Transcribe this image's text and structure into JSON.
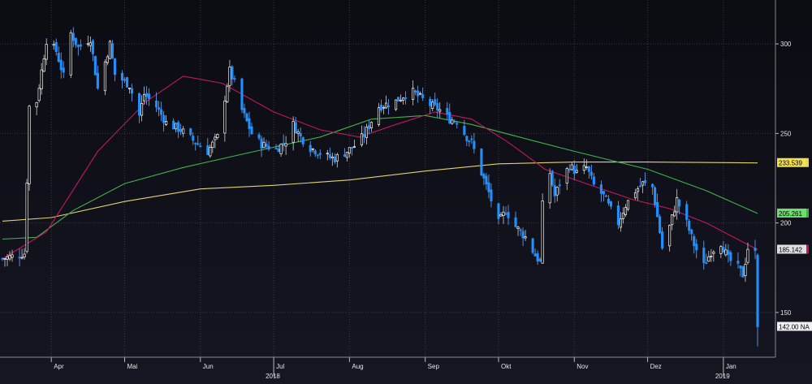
{
  "chart_data": {
    "type": "candlestick",
    "y_axis": {
      "ticks": [
        150,
        200,
        250,
        300
      ],
      "tick_labels": [
        "150",
        "200",
        "250",
        "300"
      ],
      "range": [
        125,
        320
      ],
      "position": "right"
    },
    "x_axis": {
      "range_dates": [
        "2018-03-12",
        "2019-01-15"
      ],
      "months": [
        {
          "label": "Apr",
          "date": "2018-04-01"
        },
        {
          "label": "Mai",
          "date": "2018-05-01"
        },
        {
          "label": "Jun",
          "date": "2018-06-01"
        },
        {
          "label": "Jul",
          "date": "2018-07-01"
        },
        {
          "label": "Aug",
          "date": "2018-08-01"
        },
        {
          "label": "Sep",
          "date": "2018-09-01"
        },
        {
          "label": "Okt",
          "date": "2018-10-01"
        },
        {
          "label": "Nov",
          "date": "2018-11-01"
        },
        {
          "label": "Dez",
          "date": "2018-12-01"
        },
        {
          "label": "Jan",
          "date": "2019-01-01"
        }
      ],
      "years": [
        {
          "label": "2018",
          "date": "2018-07-01"
        },
        {
          "label": "2019",
          "date": "2019-01-01"
        }
      ]
    },
    "grid": true,
    "price_key_points": [
      [
        "2018-03-12",
        180
      ],
      [
        "2018-03-21",
        183
      ],
      [
        "2018-03-23",
        265
      ],
      [
        "2018-03-26",
        268
      ],
      [
        "2018-03-30",
        302
      ],
      [
        "2018-04-03",
        296
      ],
      [
        "2018-04-06",
        282
      ],
      [
        "2018-04-09",
        306
      ],
      [
        "2018-04-12",
        298
      ],
      [
        "2018-04-17",
        303
      ],
      [
        "2018-04-20",
        275
      ],
      [
        "2018-04-25",
        300
      ],
      [
        "2018-04-27",
        283
      ],
      [
        "2018-05-03",
        277
      ],
      [
        "2018-05-07",
        260
      ],
      [
        "2018-05-09",
        272
      ],
      [
        "2018-05-14",
        265
      ],
      [
        "2018-05-18",
        256
      ],
      [
        "2018-05-24",
        252
      ],
      [
        "2018-05-30",
        245
      ],
      [
        "2018-06-04",
        240
      ],
      [
        "2018-06-08",
        248
      ],
      [
        "2018-06-11",
        270
      ],
      [
        "2018-06-13",
        285
      ],
      [
        "2018-06-15",
        278
      ],
      [
        "2018-06-18",
        263
      ],
      [
        "2018-06-22",
        250
      ],
      [
        "2018-06-26",
        244
      ],
      [
        "2018-07-02",
        241
      ],
      [
        "2018-07-06",
        246
      ],
      [
        "2018-07-09",
        255
      ],
      [
        "2018-07-12",
        248
      ],
      [
        "2018-07-16",
        242
      ],
      [
        "2018-07-23",
        237
      ],
      [
        "2018-07-26",
        236
      ],
      [
        "2018-07-31",
        240
      ],
      [
        "2018-08-03",
        243
      ],
      [
        "2018-08-07",
        249
      ],
      [
        "2018-08-13",
        265
      ],
      [
        "2018-08-20",
        268
      ],
      [
        "2018-08-24",
        272
      ],
      [
        "2018-08-27",
        273
      ],
      [
        "2018-09-03",
        266
      ],
      [
        "2018-09-07",
        263
      ],
      [
        "2018-09-11",
        258
      ],
      [
        "2018-09-14",
        257
      ],
      [
        "2018-09-18",
        248
      ],
      [
        "2018-09-20",
        245
      ],
      [
        "2018-09-24",
        228
      ],
      [
        "2018-09-27",
        217
      ],
      [
        "2018-10-01",
        200
      ],
      [
        "2018-10-04",
        207
      ],
      [
        "2018-10-08",
        198
      ],
      [
        "2018-10-12",
        192
      ],
      [
        "2018-10-16",
        182
      ],
      [
        "2018-10-18",
        178
      ],
      [
        "2018-10-19",
        210
      ],
      [
        "2018-10-22",
        228
      ],
      [
        "2018-10-24",
        215
      ],
      [
        "2018-10-26",
        222
      ],
      [
        "2018-10-30",
        232
      ],
      [
        "2018-11-02",
        228
      ],
      [
        "2018-11-06",
        231
      ],
      [
        "2018-11-09",
        221
      ],
      [
        "2018-11-13",
        215
      ],
      [
        "2018-11-16",
        207
      ],
      [
        "2018-11-19",
        200
      ],
      [
        "2018-11-22",
        210
      ],
      [
        "2018-11-26",
        218
      ],
      [
        "2018-11-29",
        222
      ],
      [
        "2018-12-03",
        220
      ],
      [
        "2018-12-06",
        195
      ],
      [
        "2018-12-07",
        186
      ],
      [
        "2018-12-10",
        198
      ],
      [
        "2018-12-13",
        213
      ],
      [
        "2018-12-17",
        200
      ],
      [
        "2018-12-20",
        188
      ],
      [
        "2018-12-24",
        176
      ],
      [
        "2018-12-27",
        184
      ],
      [
        "2018-12-31",
        189
      ],
      [
        "2019-01-03",
        180
      ],
      [
        "2019-01-07",
        175
      ],
      [
        "2019-01-09",
        171
      ],
      [
        "2019-01-11",
        186
      ],
      [
        "2019-01-14",
        183
      ],
      [
        "2019-01-15",
        142
      ]
    ],
    "moving_averages": [
      {
        "color": "#e3d26e",
        "label": "233.539",
        "label_bg": "#f4e04d",
        "points": [
          [
            "2018-03-12",
            201
          ],
          [
            "2018-04-01",
            203
          ],
          [
            "2018-05-01",
            212
          ],
          [
            "2018-06-01",
            219
          ],
          [
            "2018-07-01",
            221
          ],
          [
            "2018-08-01",
            224
          ],
          [
            "2018-09-01",
            229
          ],
          [
            "2018-10-01",
            233
          ],
          [
            "2018-11-01",
            234
          ],
          [
            "2018-12-01",
            234
          ],
          [
            "2019-01-15",
            233.5
          ]
        ]
      },
      {
        "color": "#3fb14b",
        "label": "205.261",
        "label_bg": "#6fdd6f",
        "points": [
          [
            "2018-03-12",
            191
          ],
          [
            "2018-03-26",
            192
          ],
          [
            "2018-04-10",
            207
          ],
          [
            "2018-05-01",
            222
          ],
          [
            "2018-05-25",
            231
          ],
          [
            "2018-06-20",
            239
          ],
          [
            "2018-07-20",
            248
          ],
          [
            "2018-08-10",
            258
          ],
          [
            "2018-09-01",
            260
          ],
          [
            "2018-09-20",
            255
          ],
          [
            "2018-10-15",
            246
          ],
          [
            "2018-11-01",
            240
          ],
          [
            "2018-12-01",
            230
          ],
          [
            "2018-12-25",
            218
          ],
          [
            "2019-01-15",
            205.3
          ]
        ]
      },
      {
        "color": "#c2185b",
        "label": "185.142",
        "label_bg": "#e0e0e0",
        "points": [
          [
            "2018-03-12",
            180
          ],
          [
            "2018-03-30",
            195
          ],
          [
            "2018-04-20",
            240
          ],
          [
            "2018-05-10",
            268
          ],
          [
            "2018-05-25",
            282
          ],
          [
            "2018-06-10",
            278
          ],
          [
            "2018-07-01",
            262
          ],
          [
            "2018-07-20",
            252
          ],
          [
            "2018-08-05",
            248
          ],
          [
            "2018-08-20",
            255
          ],
          [
            "2018-09-05",
            262
          ],
          [
            "2018-09-20",
            258
          ],
          [
            "2018-10-05",
            245
          ],
          [
            "2018-10-20",
            230
          ],
          [
            "2018-11-10",
            220
          ],
          [
            "2018-11-25",
            213
          ],
          [
            "2018-12-10",
            208
          ],
          [
            "2018-12-25",
            200
          ],
          [
            "2019-01-15",
            185.1
          ]
        ]
      }
    ],
    "last_price": {
      "label": "142.00 NA",
      "value": 142,
      "label_bg": "#f0f0f0"
    },
    "up_color": "#ffffff",
    "down_color": "#1e90ff"
  }
}
